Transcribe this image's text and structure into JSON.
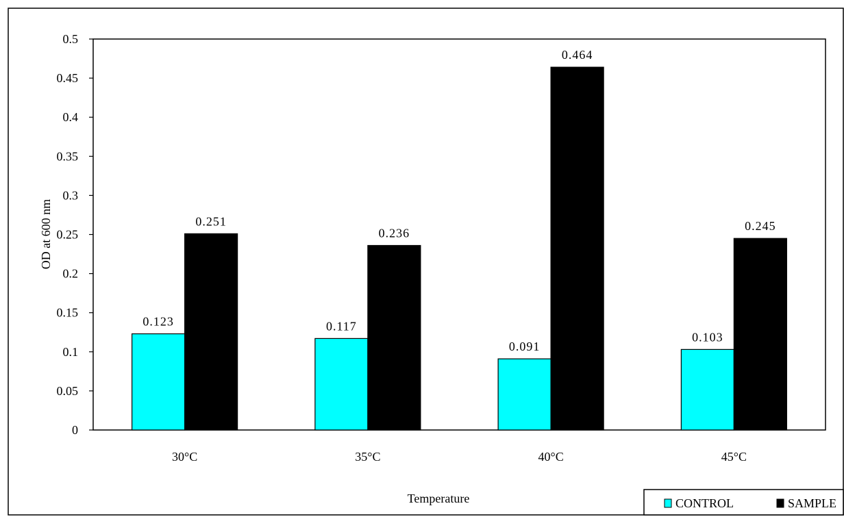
{
  "chart_data": {
    "type": "bar",
    "categories": [
      "30°C",
      "35°C",
      "40°C",
      "45°C"
    ],
    "series": [
      {
        "name": "CONTROL",
        "values": [
          0.123,
          0.117,
          0.091,
          0.103
        ],
        "color": "#00FFFF"
      },
      {
        "name": "SAMPLE",
        "values": [
          0.251,
          0.236,
          0.464,
          0.245
        ],
        "color": "#000000"
      }
    ],
    "data_labels": {
      "CONTROL": [
        "0.123",
        "0.117",
        "0.091",
        "0.103"
      ],
      "SAMPLE": [
        "0.251",
        "0.236",
        "0.464",
        "0.245"
      ]
    },
    "xlabel": "Temperature",
    "ylabel": "OD at 600 nm",
    "ylim": [
      0,
      0.5
    ],
    "yticks": [
      "0",
      "0.05",
      "0.1",
      "0.15",
      "0.2",
      "0.25",
      "0.3",
      "0.35",
      "0.4",
      "0.45",
      "0.5"
    ],
    "grid": false,
    "legend_position": "bottom-right"
  }
}
